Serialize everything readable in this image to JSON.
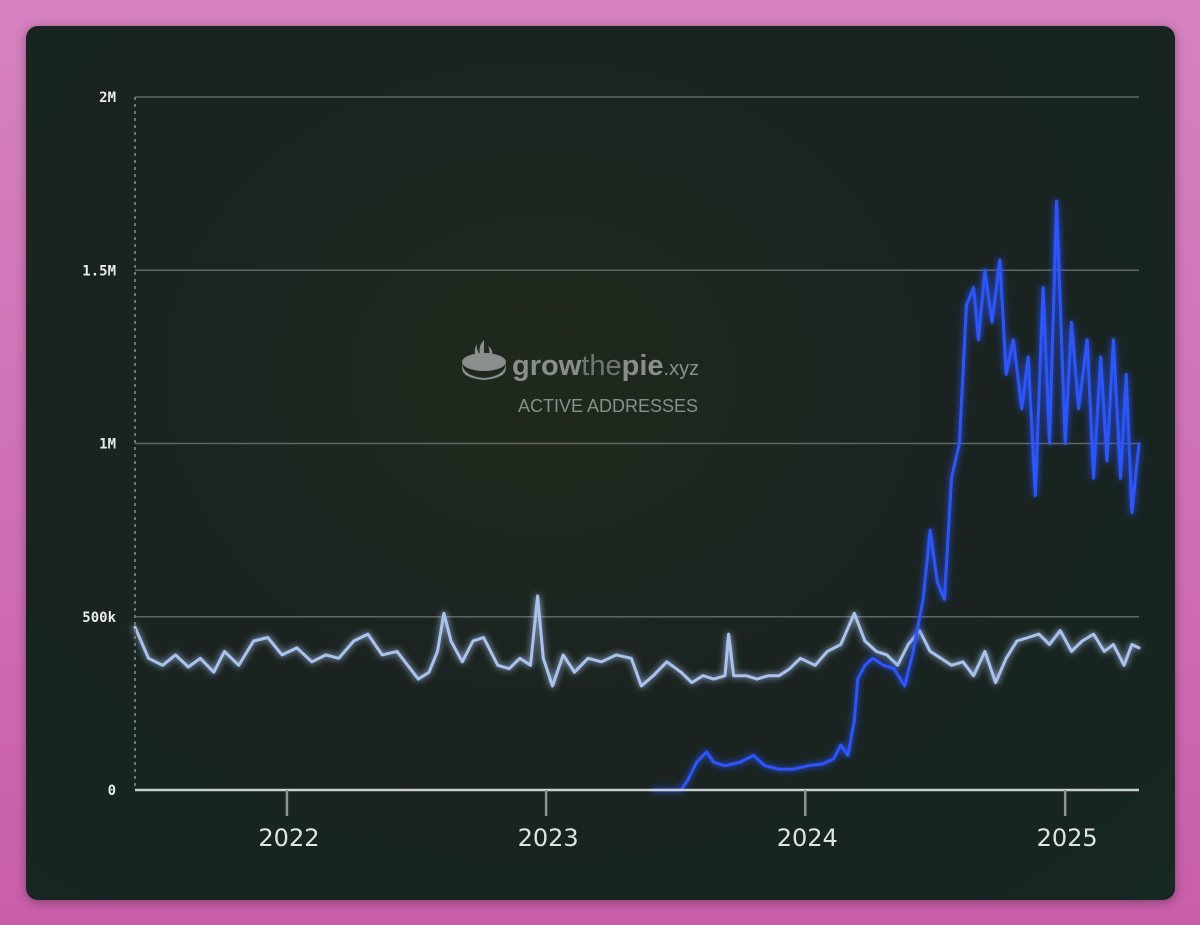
{
  "watermark": {
    "brand_grow": "grow",
    "brand_the": "the",
    "brand_pie": "pie",
    "brand_tld": ".xyz",
    "subtitle": "ACTIVE ADDRESSES"
  },
  "colors": {
    "series_a": "#a9c3ee",
    "series_b": "#2a55ff",
    "grid": "#5f6664"
  },
  "chart_data": {
    "type": "line",
    "title": "",
    "xlabel": "",
    "ylabel": "",
    "ylim": [
      0,
      2000000
    ],
    "xlim": [
      "2021-06-01",
      "2025-04-15"
    ],
    "y_ticks": [
      {
        "value": 0,
        "label": "0"
      },
      {
        "value": 500000,
        "label": "500k"
      },
      {
        "value": 1000000,
        "label": "1M"
      },
      {
        "value": 1500000,
        "label": "1.5M"
      },
      {
        "value": 2000000,
        "label": "2M"
      }
    ],
    "x_ticks": [
      {
        "value": "2022-01-01",
        "label": "2022"
      },
      {
        "value": "2023-01-01",
        "label": "2023"
      },
      {
        "value": "2024-01-01",
        "label": "2024"
      },
      {
        "value": "2025-01-01",
        "label": "2025"
      }
    ],
    "grid": true,
    "legend": "none",
    "series": [
      {
        "color": "#a9c3ee",
        "points": [
          [
            "2021-06-01",
            470000
          ],
          [
            "2021-06-20",
            380000
          ],
          [
            "2021-07-10",
            360000
          ],
          [
            "2021-07-28",
            390000
          ],
          [
            "2021-08-15",
            355000
          ],
          [
            "2021-09-01",
            380000
          ],
          [
            "2021-09-20",
            340000
          ],
          [
            "2021-10-05",
            400000
          ],
          [
            "2021-10-25",
            360000
          ],
          [
            "2021-11-15",
            430000
          ],
          [
            "2021-12-05",
            440000
          ],
          [
            "2021-12-25",
            390000
          ],
          [
            "2022-01-15",
            410000
          ],
          [
            "2022-02-05",
            370000
          ],
          [
            "2022-02-25",
            390000
          ],
          [
            "2022-03-15",
            380000
          ],
          [
            "2022-04-05",
            430000
          ],
          [
            "2022-04-25",
            450000
          ],
          [
            "2022-05-15",
            390000
          ],
          [
            "2022-06-05",
            400000
          ],
          [
            "2022-06-20",
            360000
          ],
          [
            "2022-07-05",
            320000
          ],
          [
            "2022-07-20",
            340000
          ],
          [
            "2022-08-01",
            400000
          ],
          [
            "2022-08-10",
            510000
          ],
          [
            "2022-08-20",
            430000
          ],
          [
            "2022-09-05",
            370000
          ],
          [
            "2022-09-20",
            430000
          ],
          [
            "2022-10-05",
            440000
          ],
          [
            "2022-10-25",
            360000
          ],
          [
            "2022-11-10",
            350000
          ],
          [
            "2022-11-25",
            380000
          ],
          [
            "2022-12-10",
            360000
          ],
          [
            "2022-12-20",
            560000
          ],
          [
            "2022-12-28",
            380000
          ],
          [
            "2023-01-10",
            300000
          ],
          [
            "2023-01-25",
            390000
          ],
          [
            "2023-02-10",
            340000
          ],
          [
            "2023-03-01",
            380000
          ],
          [
            "2023-03-20",
            370000
          ],
          [
            "2023-04-10",
            390000
          ],
          [
            "2023-05-01",
            380000
          ],
          [
            "2023-05-15",
            300000
          ],
          [
            "2023-06-01",
            330000
          ],
          [
            "2023-06-20",
            370000
          ],
          [
            "2023-07-10",
            340000
          ],
          [
            "2023-07-25",
            310000
          ],
          [
            "2023-08-10",
            330000
          ],
          [
            "2023-08-25",
            320000
          ],
          [
            "2023-09-10",
            330000
          ],
          [
            "2023-09-15",
            450000
          ],
          [
            "2023-09-22",
            330000
          ],
          [
            "2023-10-10",
            330000
          ],
          [
            "2023-10-25",
            320000
          ],
          [
            "2023-11-10",
            330000
          ],
          [
            "2023-11-25",
            330000
          ],
          [
            "2023-12-10",
            350000
          ],
          [
            "2023-12-25",
            380000
          ],
          [
            "2024-01-15",
            360000
          ],
          [
            "2024-02-01",
            400000
          ],
          [
            "2024-02-20",
            420000
          ],
          [
            "2024-03-10",
            510000
          ],
          [
            "2024-03-25",
            430000
          ],
          [
            "2024-04-10",
            400000
          ],
          [
            "2024-04-25",
            390000
          ],
          [
            "2024-05-10",
            360000
          ],
          [
            "2024-05-25",
            420000
          ],
          [
            "2024-06-10",
            460000
          ],
          [
            "2024-06-25",
            400000
          ],
          [
            "2024-07-10",
            380000
          ],
          [
            "2024-07-25",
            360000
          ],
          [
            "2024-08-10",
            370000
          ],
          [
            "2024-08-25",
            330000
          ],
          [
            "2024-09-10",
            400000
          ],
          [
            "2024-09-25",
            310000
          ],
          [
            "2024-10-10",
            380000
          ],
          [
            "2024-10-25",
            430000
          ],
          [
            "2024-11-10",
            440000
          ],
          [
            "2024-11-25",
            450000
          ],
          [
            "2024-12-10",
            420000
          ],
          [
            "2024-12-25",
            460000
          ],
          [
            "2025-01-10",
            400000
          ],
          [
            "2025-01-25",
            430000
          ],
          [
            "2025-02-10",
            450000
          ],
          [
            "2025-02-25",
            400000
          ],
          [
            "2025-03-10",
            420000
          ],
          [
            "2025-03-25",
            360000
          ],
          [
            "2025-04-05",
            420000
          ],
          [
            "2025-04-15",
            410000
          ]
        ]
      },
      {
        "color": "#2a55ff",
        "points": [
          [
            "2023-06-01",
            0
          ],
          [
            "2023-07-10",
            0
          ],
          [
            "2023-07-20",
            30000
          ],
          [
            "2023-08-01",
            80000
          ],
          [
            "2023-08-15",
            110000
          ],
          [
            "2023-08-25",
            80000
          ],
          [
            "2023-09-10",
            70000
          ],
          [
            "2023-10-01",
            80000
          ],
          [
            "2023-10-20",
            100000
          ],
          [
            "2023-11-05",
            70000
          ],
          [
            "2023-11-25",
            60000
          ],
          [
            "2023-12-15",
            60000
          ],
          [
            "2024-01-05",
            70000
          ],
          [
            "2024-01-25",
            75000
          ],
          [
            "2024-02-10",
            90000
          ],
          [
            "2024-02-20",
            130000
          ],
          [
            "2024-03-01",
            100000
          ],
          [
            "2024-03-10",
            200000
          ],
          [
            "2024-03-15",
            320000
          ],
          [
            "2024-03-25",
            360000
          ],
          [
            "2024-04-05",
            380000
          ],
          [
            "2024-04-20",
            360000
          ],
          [
            "2024-05-05",
            350000
          ],
          [
            "2024-05-20",
            300000
          ],
          [
            "2024-06-01",
            400000
          ],
          [
            "2024-06-15",
            550000
          ],
          [
            "2024-06-25",
            750000
          ],
          [
            "2024-07-05",
            600000
          ],
          [
            "2024-07-15",
            550000
          ],
          [
            "2024-07-25",
            900000
          ],
          [
            "2024-08-05",
            1000000
          ],
          [
            "2024-08-15",
            1400000
          ],
          [
            "2024-08-25",
            1450000
          ],
          [
            "2024-09-01",
            1300000
          ],
          [
            "2024-09-10",
            1500000
          ],
          [
            "2024-09-20",
            1350000
          ],
          [
            "2024-10-01",
            1530000
          ],
          [
            "2024-10-10",
            1200000
          ],
          [
            "2024-10-20",
            1300000
          ],
          [
            "2024-11-01",
            1100000
          ],
          [
            "2024-11-10",
            1250000
          ],
          [
            "2024-11-20",
            850000
          ],
          [
            "2024-12-01",
            1450000
          ],
          [
            "2024-12-10",
            1000000
          ],
          [
            "2024-12-20",
            1700000
          ],
          [
            "2025-01-01",
            1000000
          ],
          [
            "2025-01-10",
            1350000
          ],
          [
            "2025-01-20",
            1100000
          ],
          [
            "2025-02-01",
            1300000
          ],
          [
            "2025-02-10",
            900000
          ],
          [
            "2025-02-20",
            1250000
          ],
          [
            "2025-03-01",
            950000
          ],
          [
            "2025-03-10",
            1300000
          ],
          [
            "2025-03-20",
            900000
          ],
          [
            "2025-03-28",
            1200000
          ],
          [
            "2025-04-05",
            800000
          ],
          [
            "2025-04-10",
            900000
          ],
          [
            "2025-04-15",
            1000000
          ]
        ]
      }
    ]
  }
}
